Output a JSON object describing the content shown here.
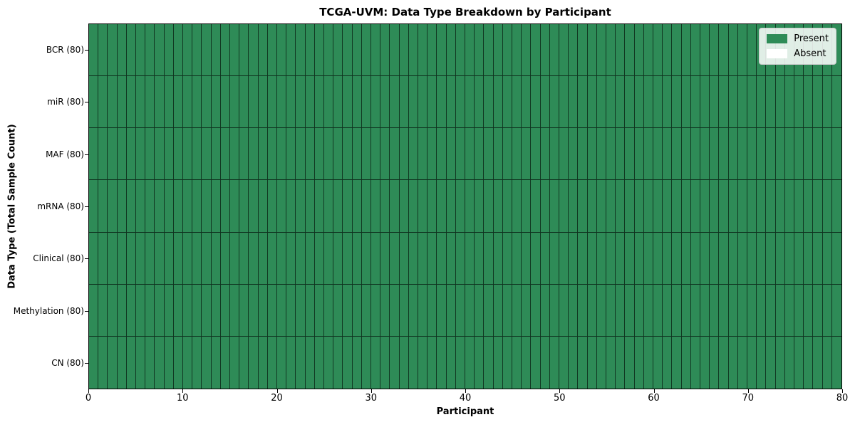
{
  "chart_data": {
    "type": "heatmap",
    "title": "TCGA-UVM: Data Type Breakdown by Participant",
    "xlabel": "Participant",
    "ylabel": "Data Type (Total Sample Count)",
    "xlim": [
      0,
      80
    ],
    "x_ticks": [
      0,
      10,
      20,
      30,
      40,
      50,
      60,
      70,
      80
    ],
    "n_participants": 80,
    "rows": [
      {
        "label": "BCR (80)",
        "present": 80,
        "absent": 0
      },
      {
        "label": "miR (80)",
        "present": 80,
        "absent": 0
      },
      {
        "label": "MAF (80)",
        "present": 80,
        "absent": 0
      },
      {
        "label": "mRNA (80)",
        "present": 80,
        "absent": 0
      },
      {
        "label": "Clinical (80)",
        "present": 80,
        "absent": 0
      },
      {
        "label": "Methylation (80)",
        "present": 80,
        "absent": 0
      },
      {
        "label": "CN (80)",
        "present": 80,
        "absent": 0
      }
    ],
    "legend": {
      "position": "upper right",
      "items": [
        {
          "label": "Present",
          "color": "#2e8b57"
        },
        {
          "label": "Absent",
          "color": "#ffffff"
        }
      ]
    },
    "colors": {
      "present": "#2e8b57",
      "absent": "#ffffff",
      "cell_edge": "#0a2316",
      "spine": "#000000"
    },
    "grid": false
  }
}
